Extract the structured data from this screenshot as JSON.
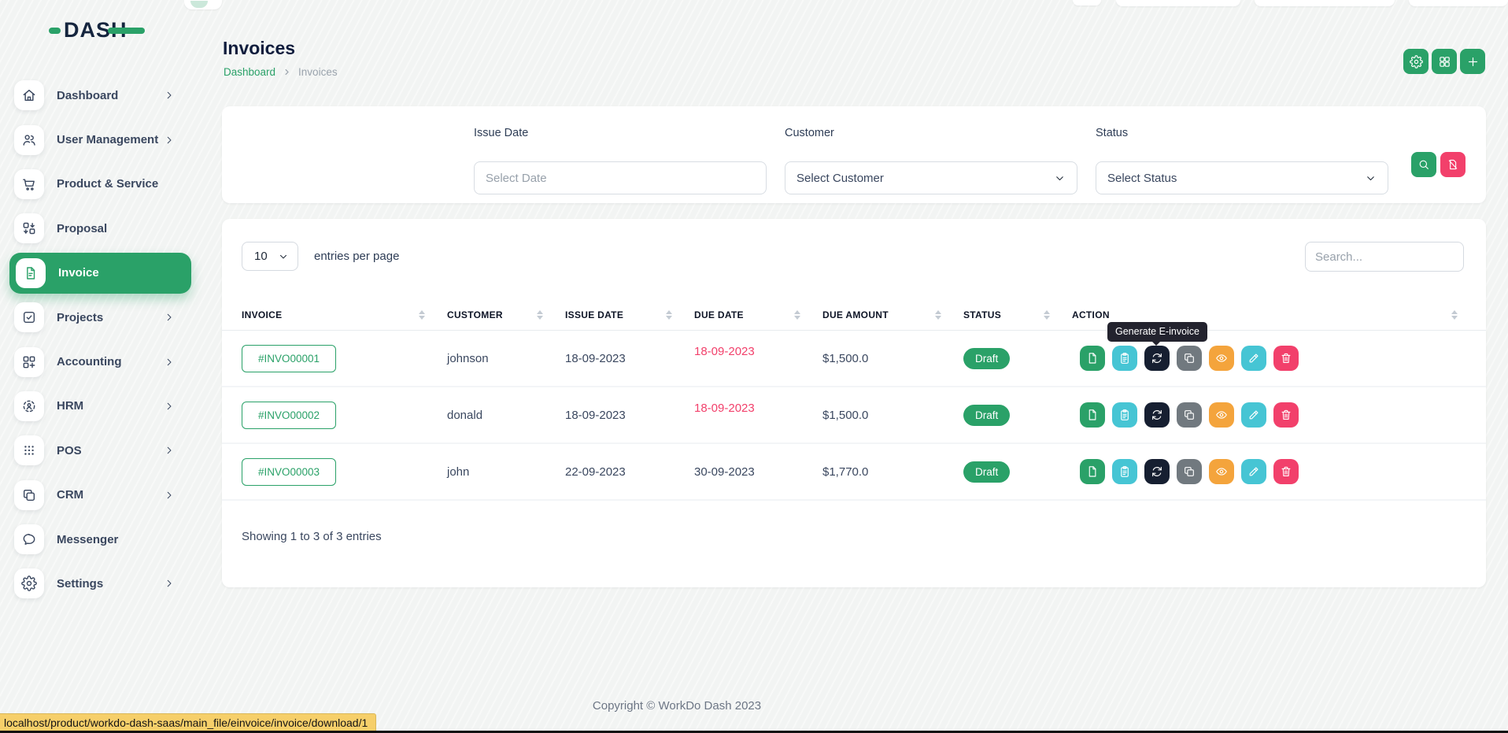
{
  "brand": {
    "name": "DASH"
  },
  "sidebar": {
    "items": [
      {
        "label": "Dashboard",
        "icon": "home-icon",
        "has_children": true,
        "active": false
      },
      {
        "label": "User Management",
        "icon": "users-icon",
        "has_children": true,
        "active": false
      },
      {
        "label": "Product & Service",
        "icon": "cart-icon",
        "has_children": false,
        "active": false
      },
      {
        "label": "Proposal",
        "icon": "proposal-icon",
        "has_children": false,
        "active": false
      },
      {
        "label": "Invoice",
        "icon": "invoice-icon",
        "has_children": false,
        "active": true
      },
      {
        "label": "Projects",
        "icon": "projects-icon",
        "has_children": true,
        "active": false
      },
      {
        "label": "Accounting",
        "icon": "accounting-icon",
        "has_children": true,
        "active": false
      },
      {
        "label": "HRM",
        "icon": "hrm-icon",
        "has_children": true,
        "active": false
      },
      {
        "label": "POS",
        "icon": "pos-icon",
        "has_children": true,
        "active": false
      },
      {
        "label": "CRM",
        "icon": "crm-icon",
        "has_children": true,
        "active": false
      },
      {
        "label": "Messenger",
        "icon": "messenger-icon",
        "has_children": false,
        "active": false
      },
      {
        "label": "Settings",
        "icon": "settings-icon",
        "has_children": true,
        "active": false
      }
    ]
  },
  "header": {
    "title": "Invoices",
    "breadcrumb": [
      "Dashboard",
      "Invoices"
    ]
  },
  "topbar": {
    "buttons": [
      {
        "name": "settings",
        "icon": "gear-icon"
      },
      {
        "name": "grid-view",
        "icon": "grid-icon"
      },
      {
        "name": "create-invoice",
        "icon": "plus-icon"
      }
    ]
  },
  "filters": {
    "issue_date": {
      "label": "Issue Date",
      "placeholder": "Select Date"
    },
    "customer": {
      "label": "Customer",
      "value": "Select Customer"
    },
    "status": {
      "label": "Status",
      "value": "Select Status"
    },
    "apply_icon": "search-icon",
    "reset_icon": "filter-off-icon"
  },
  "table": {
    "entries_per_page": "10",
    "entries_label": "entries per page",
    "search_placeholder": "Search...",
    "columns": [
      "INVOICE",
      "CUSTOMER",
      "ISSUE DATE",
      "DUE DATE",
      "DUE AMOUNT",
      "STATUS",
      "ACTION"
    ],
    "rows": [
      {
        "invoice": "#INVO00001",
        "customer": "johnson",
        "issue_date": "18-09-2023",
        "due_date": "18-09-2023",
        "due_date_overdue": true,
        "due_amount": "$1,500.0",
        "status": "Draft"
      },
      {
        "invoice": "#INVO00002",
        "customer": "donald",
        "issue_date": "18-09-2023",
        "due_date": "18-09-2023",
        "due_date_overdue": true,
        "due_amount": "$1,500.0",
        "status": "Draft"
      },
      {
        "invoice": "#INVO00003",
        "customer": "john",
        "issue_date": "22-09-2023",
        "due_date": "30-09-2023",
        "due_date_overdue": false,
        "due_amount": "$1,770.0",
        "status": "Draft"
      }
    ],
    "row_actions": [
      {
        "name": "download-invoice",
        "icon": "file-icon",
        "color": "#2aa168"
      },
      {
        "name": "duplicate-invoice",
        "icon": "clipboard-icon",
        "color": "#46c5d4"
      },
      {
        "name": "generate-einvoice",
        "icon": "sync-icon",
        "color": "#161f31"
      },
      {
        "name": "copy-invoice-link",
        "icon": "copy-icon",
        "color": "#71797f"
      },
      {
        "name": "view-invoice",
        "icon": "eye-icon",
        "color": "#f4a43c"
      },
      {
        "name": "edit-invoice",
        "icon": "pencil-icon",
        "color": "#46c5d4"
      },
      {
        "name": "delete-invoice",
        "icon": "trash-icon",
        "color": "#f2406b"
      }
    ],
    "summary": "Showing 1 to 3 of 3 entries"
  },
  "tooltip": {
    "text": "Generate E-invoice"
  },
  "footer": {
    "copyright": "Copyright © WorkDo Dash 2023"
  },
  "statusbar": {
    "url": "localhost/product/workdo-dash-saas/main_file/einvoice/invoice/download/1"
  },
  "colors": {
    "primary_green": "#2aa168",
    "cyan": "#46c5d4",
    "orange": "#f4a43c",
    "pink": "#f2406b",
    "dark_navy": "#161f31",
    "gray": "#71797f",
    "overdue_red": "#f2406b",
    "status_draft_bg": "#2aa168",
    "statusbar_yellow": "#f6cf6a"
  }
}
